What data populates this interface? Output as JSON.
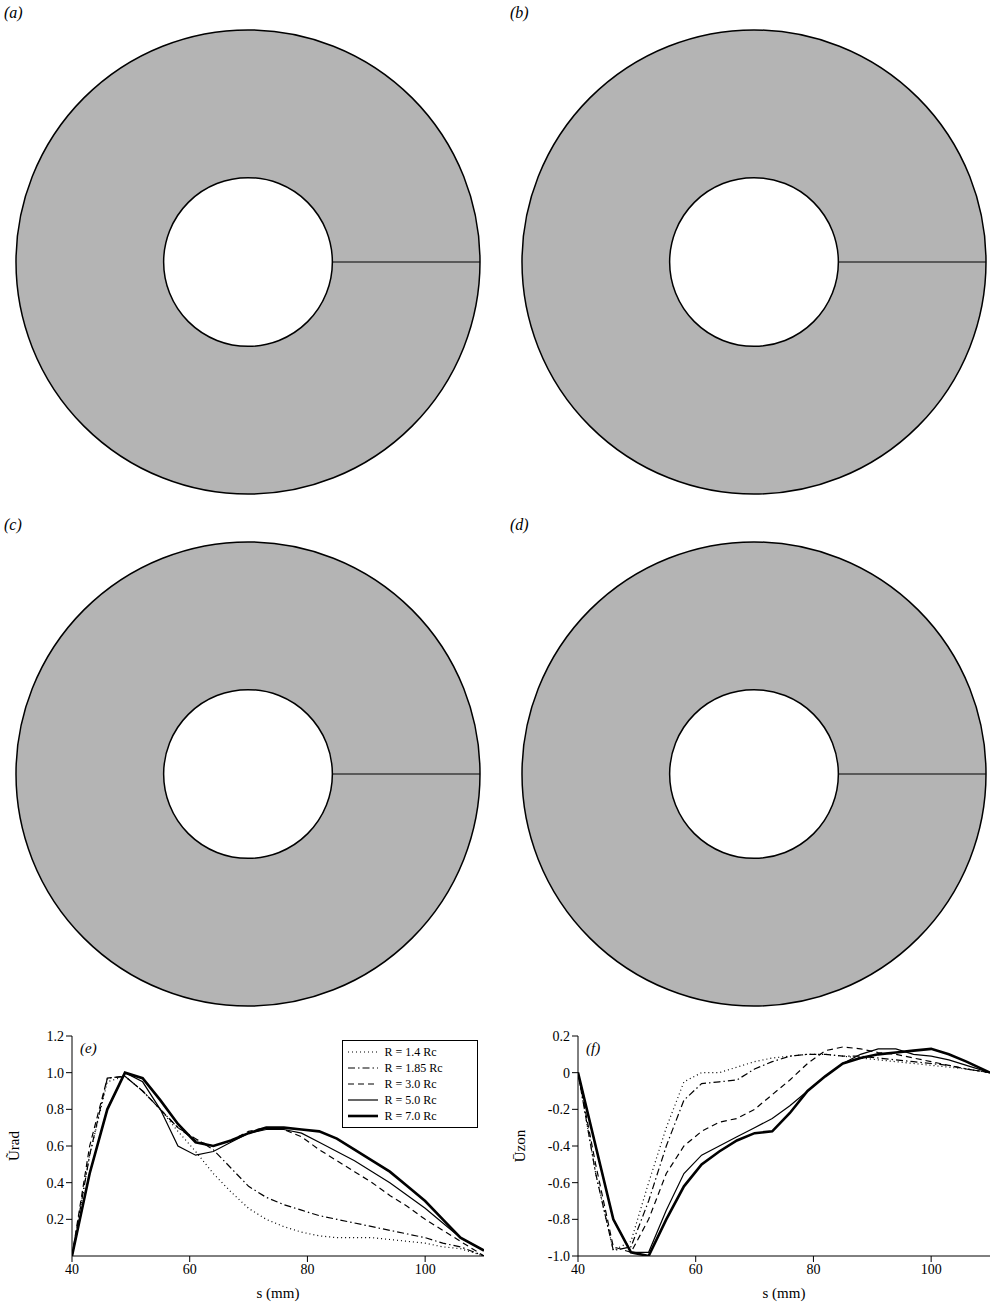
{
  "contour_panels": [
    "(a)",
    "(b)",
    "(c)",
    "(d)"
  ],
  "chart_data": [
    {
      "type": "line",
      "title": "(e)",
      "x_label": "s (mm)",
      "y_label": "Ũrad",
      "x": [
        40,
        43,
        46,
        49,
        52,
        55,
        58,
        61,
        64,
        67,
        70,
        73,
        76,
        79,
        82,
        85,
        88,
        91,
        94,
        97,
        100,
        103,
        106,
        110
      ],
      "xlim": [
        40,
        110
      ],
      "xticks": [
        40,
        60,
        80,
        100
      ],
      "ylim": [
        0,
        1.2
      ],
      "yticks": [
        0.2,
        0.4,
        0.6,
        0.8,
        {
          "value": 1,
          "label": "1.0"
        },
        1.2
      ],
      "legend": "upper right",
      "series": [
        {
          "name": "R = 1.4 Rc",
          "color": "#000000",
          "line_style": "dotted",
          "values": [
            0,
            0.55,
            0.95,
            0.98,
            0.9,
            0.8,
            0.68,
            0.57,
            0.45,
            0.35,
            0.26,
            0.2,
            0.16,
            0.13,
            0.11,
            0.1,
            0.1,
            0.1,
            0.09,
            0.08,
            0.07,
            0.05,
            0.04,
            0
          ]
        },
        {
          "name": "R = 1.85 Rc",
          "color": "#000000",
          "line_style": "dashdot",
          "values": [
            0,
            0.55,
            0.97,
            0.98,
            0.9,
            0.8,
            0.7,
            0.64,
            0.58,
            0.48,
            0.38,
            0.32,
            0.28,
            0.25,
            0.22,
            0.2,
            0.18,
            0.16,
            0.14,
            0.12,
            0.1,
            0.07,
            0.05,
            0
          ]
        },
        {
          "name": "R = 3.0 Rc",
          "color": "#000000",
          "line_style": "dashed",
          "values": [
            0,
            0.6,
            0.97,
            0.98,
            0.9,
            0.8,
            0.7,
            0.63,
            0.6,
            0.63,
            0.68,
            0.7,
            0.69,
            0.65,
            0.58,
            0.52,
            0.46,
            0.4,
            0.33,
            0.27,
            0.2,
            0.14,
            0.08,
            0
          ]
        },
        {
          "name": "R = 5.0 Rc",
          "color": "#000000",
          "line_style": "solid",
          "values": [
            0,
            0.45,
            0.8,
            1.0,
            0.95,
            0.8,
            0.6,
            0.55,
            0.57,
            0.62,
            0.67,
            0.69,
            0.69,
            0.67,
            0.62,
            0.57,
            0.52,
            0.46,
            0.4,
            0.33,
            0.26,
            0.18,
            0.1,
            0.03
          ]
        },
        {
          "name": "R = 7.0 Rc",
          "color": "#000000",
          "line_style": "thick",
          "values": [
            0,
            0.45,
            0.8,
            1.0,
            0.97,
            0.85,
            0.72,
            0.62,
            0.6,
            0.63,
            0.67,
            0.7,
            0.7,
            0.69,
            0.68,
            0.64,
            0.58,
            0.52,
            0.46,
            0.38,
            0.3,
            0.2,
            0.1,
            0.03
          ]
        }
      ]
    },
    {
      "type": "line",
      "title": "(f)",
      "x_label": "s (mm)",
      "y_label": "Ūzon",
      "x": [
        40,
        43,
        46,
        49,
        52,
        55,
        58,
        61,
        64,
        67,
        70,
        73,
        76,
        79,
        82,
        85,
        88,
        91,
        94,
        97,
        100,
        103,
        106,
        110
      ],
      "xlim": [
        40,
        110
      ],
      "xticks": [
        40,
        60,
        80,
        100
      ],
      "ylim": [
        -1,
        0.2
      ],
      "yticks": [
        {
          "value": -1,
          "label": "-1.0"
        },
        -0.8,
        -0.6,
        -0.4,
        -0.2,
        0,
        0.2
      ],
      "series": [
        {
          "color": "#000000",
          "line_style": "dotted",
          "values": [
            0,
            -0.55,
            -0.97,
            -0.92,
            -0.6,
            -0.3,
            -0.05,
            0,
            0,
            0.03,
            0.06,
            0.08,
            0.09,
            0.1,
            0.1,
            0.09,
            0.08,
            0.07,
            0.06,
            0.05,
            0.04,
            0.03,
            0.02,
            0
          ]
        },
        {
          "color": "#000000",
          "line_style": "dashdot",
          "values": [
            0,
            -0.55,
            -0.97,
            -0.95,
            -0.7,
            -0.4,
            -0.15,
            -0.06,
            -0.05,
            -0.04,
            0.02,
            0.06,
            0.09,
            0.1,
            0.1,
            0.09,
            0.09,
            0.08,
            0.07,
            0.06,
            0.05,
            0.04,
            0.02,
            0
          ]
        },
        {
          "color": "#000000",
          "line_style": "dashed",
          "values": [
            0,
            -0.5,
            -0.95,
            -0.98,
            -0.8,
            -0.55,
            -0.4,
            -0.32,
            -0.27,
            -0.25,
            -0.2,
            -0.12,
            -0.04,
            0.05,
            0.12,
            0.14,
            0.13,
            0.11,
            0.1,
            0.08,
            0.06,
            0.04,
            0.02,
            0
          ]
        },
        {
          "color": "#000000",
          "line_style": "solid",
          "values": [
            0,
            -0.4,
            -0.8,
            -0.98,
            -0.98,
            -0.75,
            -0.55,
            -0.45,
            -0.4,
            -0.35,
            -0.3,
            -0.25,
            -0.18,
            -0.1,
            -0.02,
            0.05,
            0.1,
            0.13,
            0.13,
            0.1,
            0.09,
            0.07,
            0.04,
            0
          ]
        },
        {
          "color": "#000000",
          "line_style": "thick",
          "values": [
            0,
            -0.4,
            -0.8,
            -0.98,
            -1.0,
            -0.8,
            -0.62,
            -0.5,
            -0.43,
            -0.37,
            -0.33,
            -0.32,
            -0.22,
            -0.1,
            -0.02,
            0.05,
            0.08,
            0.1,
            0.11,
            0.12,
            0.13,
            0.1,
            0.06,
            0
          ]
        }
      ]
    }
  ]
}
